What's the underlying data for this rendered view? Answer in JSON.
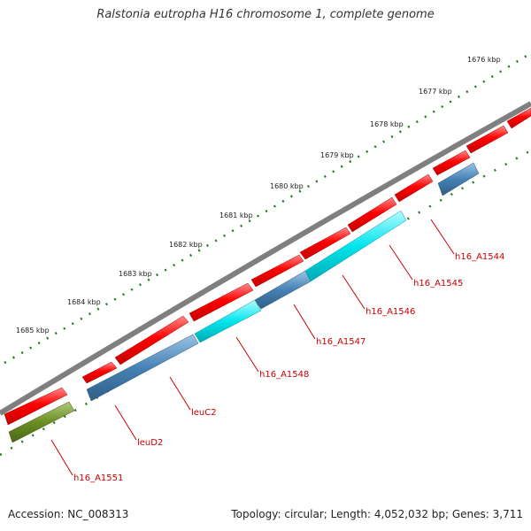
{
  "title": "Ralstonia eutropha H16 chromosome 1, complete genome",
  "footer": {
    "accession": "Accession: NC_008313",
    "summary": "Topology: circular; Length: 4,052,032 bp; Genes: 3,711"
  },
  "scale_labels": [
    "1676 kbp",
    "1677 kbp",
    "1678 kbp",
    "1679 kbp",
    "1680 kbp",
    "1681 kbp",
    "1682 kbp",
    "1683 kbp",
    "1684 kbp",
    "1685 kbp"
  ],
  "gene_labels": [
    "h16_A1544",
    "h16_A1545",
    "h16_A1546",
    "h16_A1547",
    "h16_A1548",
    "leuC2",
    "leuD2",
    "h16_A1551"
  ],
  "colors": {
    "backbone": "#7f7f7f",
    "forward_gene": "#ff0000",
    "reverse_gene_blue": "#4682b4",
    "reverse_gene_cyan": "#00e5ee",
    "reverse_gene_green": "#6b8e23",
    "scale_ticks": "#1e7b1e",
    "gene_label": "#cc0000"
  }
}
